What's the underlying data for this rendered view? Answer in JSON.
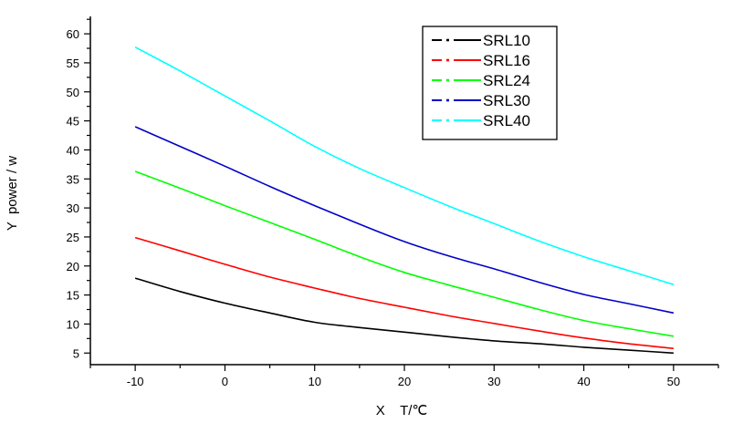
{
  "chart_data": {
    "type": "line",
    "xlabel": "X    T/℃",
    "ylabel": "Y  power / w",
    "xlim": [
      -15,
      55
    ],
    "ylim": [
      3,
      63
    ],
    "xticks": [
      -10,
      0,
      10,
      20,
      30,
      40,
      50
    ],
    "yticks": [
      5,
      10,
      15,
      20,
      25,
      30,
      35,
      40,
      45,
      50,
      55,
      60
    ],
    "grid": false,
    "legend_position": "top-right",
    "series": [
      {
        "name": "SRL10",
        "color": "#000000",
        "x": [
          -10,
          -5,
          0,
          5,
          10,
          15,
          20,
          25,
          30,
          35,
          40,
          45,
          50
        ],
        "y": [
          17.9,
          15.6,
          13.6,
          11.9,
          10.3,
          9.4,
          8.6,
          7.8,
          7.1,
          6.6,
          6.0,
          5.5,
          5.0
        ]
      },
      {
        "name": "SRL16",
        "color": "#ff0000",
        "x": [
          -10,
          -5,
          0,
          5,
          10,
          15,
          20,
          25,
          30,
          35,
          40,
          45,
          50
        ],
        "y": [
          24.9,
          22.6,
          20.3,
          18.1,
          16.2,
          14.4,
          12.9,
          11.4,
          10.1,
          8.8,
          7.6,
          6.6,
          5.8
        ]
      },
      {
        "name": "SRL24",
        "color": "#00ff00",
        "x": [
          -10,
          -5,
          0,
          5,
          10,
          15,
          20,
          25,
          30,
          35,
          40,
          45,
          50
        ],
        "y": [
          36.3,
          33.4,
          30.4,
          27.5,
          24.6,
          21.6,
          18.9,
          16.7,
          14.6,
          12.5,
          10.6,
          9.2,
          7.9
        ]
      },
      {
        "name": "SRL30",
        "color": "#0000c8",
        "x": [
          -10,
          -5,
          0,
          5,
          10,
          15,
          20,
          25,
          30,
          35,
          40,
          45,
          50
        ],
        "y": [
          44.0,
          40.6,
          37.2,
          33.7,
          30.4,
          27.2,
          24.2,
          21.7,
          19.5,
          17.2,
          15.1,
          13.5,
          11.9
        ]
      },
      {
        "name": "SRL40",
        "color": "#00ffff",
        "x": [
          -10,
          -5,
          0,
          5,
          10,
          15,
          20,
          25,
          30,
          35,
          40,
          45,
          50
        ],
        "y": [
          57.7,
          53.6,
          49.3,
          45.0,
          40.6,
          36.8,
          33.5,
          30.3,
          27.3,
          24.3,
          21.6,
          19.2,
          16.8
        ]
      }
    ]
  }
}
